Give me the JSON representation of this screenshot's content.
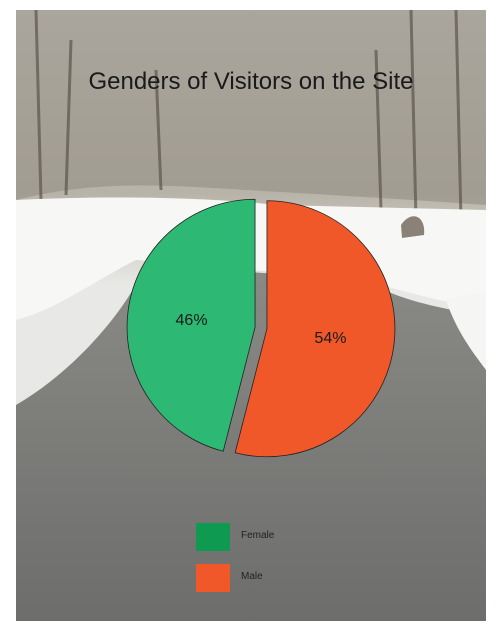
{
  "chart_data": {
    "type": "pie",
    "title": "Genders of Visitors on the Site",
    "slices": [
      {
        "label": "Female",
        "value": 46,
        "display": "46%",
        "color": "#2db873",
        "legend_color": "#0f9a52"
      },
      {
        "label": "Male",
        "value": 54,
        "display": "54%",
        "color": "#f0582a",
        "legend_color": "#f0582a"
      }
    ],
    "exploded": true,
    "legend_position": "bottom-center",
    "background": "photo of a snowy park path"
  }
}
